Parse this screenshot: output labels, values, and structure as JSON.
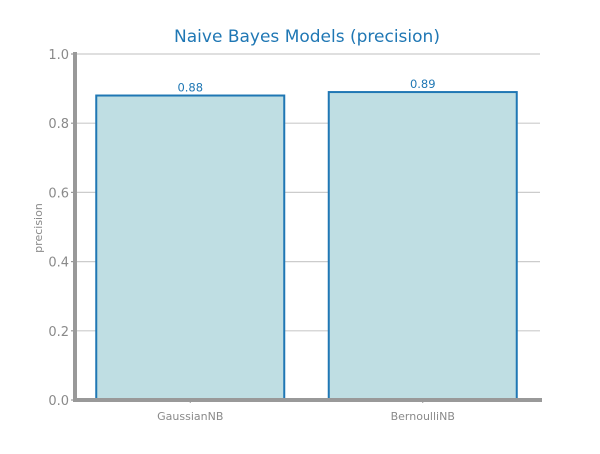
{
  "chart_data": {
    "type": "bar",
    "title": "Naive Bayes Models (precision)",
    "xlabel": "",
    "ylabel": "precision",
    "categories": [
      "GaussianNB",
      "BernoulliNB"
    ],
    "values": [
      0.88,
      0.89
    ],
    "value_labels": [
      "0.88",
      "0.89"
    ],
    "ylim": [
      0.0,
      1.0
    ],
    "yticks": [
      0.0,
      0.2,
      0.4,
      0.6,
      0.8,
      1.0
    ],
    "ytick_labels": [
      "0.0",
      "0.2",
      "0.4",
      "0.6",
      "0.8",
      "1.0"
    ],
    "grid": "horizontal",
    "legend": "none",
    "colors": {
      "bar_fill": "#bfdee3",
      "bar_edge": "#1f77b4",
      "title": "#1f77b4",
      "value_label": "#1f77b4",
      "axis": "#999999",
      "grid": "#cccccc",
      "tick_label": "#8a8a8a"
    }
  }
}
